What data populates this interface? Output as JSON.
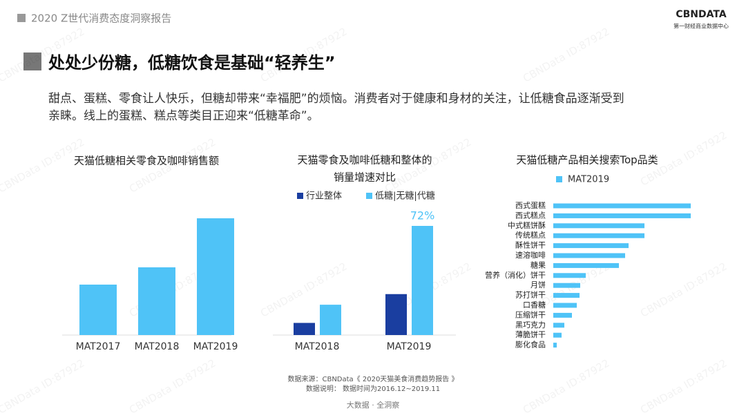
{
  "header": {
    "report": "2020 Z世代消费态度洞察报告",
    "logo": "CBNDATA",
    "logo_sub": "第一财经商业数据中心",
    "watermark": "CBNData ID:87922"
  },
  "title": "处处少份糖，低糖饮食是基础“轻养生”",
  "paragraph": [
    "甜点、蛋糕、零食让人快乐，但糖却带来“幸福肥”的烦恼。消费者对于健康和身材的关注，让低糖食品逐渐受到",
    "亲睐。线上的蛋糕、糕点等类目正迎来“低糖革命”。"
  ],
  "chart_data": [
    {
      "type": "bar",
      "title": "天猫低糖相关零食及咖啡销售额",
      "categories": [
        "MAT2017",
        "MAT2018",
        "MAT2019"
      ],
      "values": [
        73,
        98,
        169
      ],
      "color": "#4fc3f7"
    },
    {
      "type": "grouped-bar",
      "title": [
        "天猫零食及咖啡低糖和整体的",
        "销量增速对比"
      ],
      "categories": [
        "MAT2018",
        "MAT2019"
      ],
      "series": [
        {
          "name": "行业整体",
          "color": "#1a3ea0",
          "values": [
            8,
            27
          ]
        },
        {
          "name": "低糖|无糖|代糖",
          "color": "#4fc3f7",
          "values": [
            20,
            72
          ],
          "value_labels": [
            null,
            "72%"
          ]
        }
      ]
    },
    {
      "type": "hbar",
      "title": "天猫低糖产品相关搜索Top品类",
      "categories": [
        "西式蛋糕",
        "西式糕点",
        "中式糕饼酥",
        "传统糕点",
        "酥性饼干",
        "速溶咖啡",
        "糖果",
        "营养（消化）饼干",
        "月饼",
        "苏打饼干",
        "口香糖",
        "压缩饼干",
        "黑巧克力",
        "薄脆饼干",
        "膨化食品"
      ],
      "series": [
        {
          "name": "MAT2019",
          "color": "#4fc3f7",
          "values": [
            199,
            199,
            132,
            132,
            109,
            104,
            95,
            47,
            39,
            38,
            34,
            27,
            16,
            12,
            5
          ]
        }
      ]
    }
  ],
  "footer": {
    "source": "数据来源：CBNData《 2020天猫美食消费趋势报告 》",
    "note": "数据说明： 数据时间为2016.12~2019.11",
    "slogan": "大数据 · 全洞察"
  }
}
